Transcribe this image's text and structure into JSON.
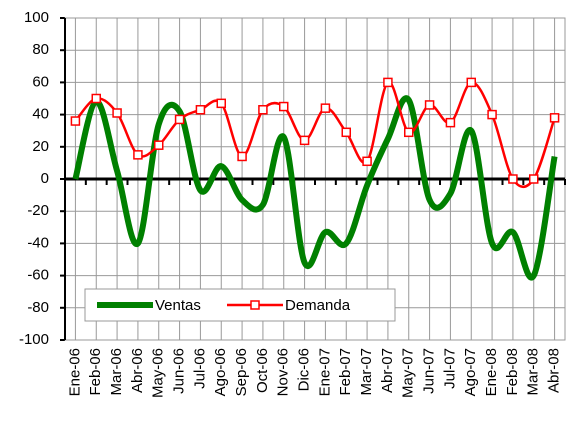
{
  "chart_data": {
    "type": "line",
    "categories": [
      "Ene-06",
      "Feb-06",
      "Mar-06",
      "Abr-06",
      "May-06",
      "Jun-06",
      "Jul-06",
      "Ago-06",
      "Sep-06",
      "Oct-06",
      "Nov-06",
      "Dic-06",
      "Ene-07",
      "Feb-07",
      "Mar-07",
      "Abr-07",
      "May-07",
      "Jun-07",
      "Jul-07",
      "Ago-07",
      "Ene-08",
      "Feb-08",
      "Mar-08",
      "Abr-08"
    ],
    "series": [
      {
        "name": "Ventas",
        "color": "#008000",
        "smooth": true,
        "marker": false,
        "values": [
          0,
          48,
          5,
          -40,
          34,
          42,
          -7,
          8,
          -13,
          -16,
          26,
          -52,
          -33,
          -40,
          -4,
          25,
          49,
          -13,
          -9,
          30,
          -40,
          -33,
          -60,
          14
        ]
      },
      {
        "name": "Demanda",
        "color": "#ff0000",
        "smooth": true,
        "marker": true,
        "values": [
          36,
          50,
          41,
          15,
          21,
          37,
          43,
          47,
          14,
          43,
          45,
          24,
          44,
          29,
          11,
          60,
          29,
          46,
          35,
          60,
          40,
          0,
          0,
          38
        ]
      }
    ],
    "ylim": [
      -100,
      100
    ],
    "yticks": [
      -100,
      -80,
      -60,
      -40,
      -20,
      0,
      20,
      40,
      60,
      80,
      100
    ],
    "grid": true,
    "legend": "lower left"
  }
}
